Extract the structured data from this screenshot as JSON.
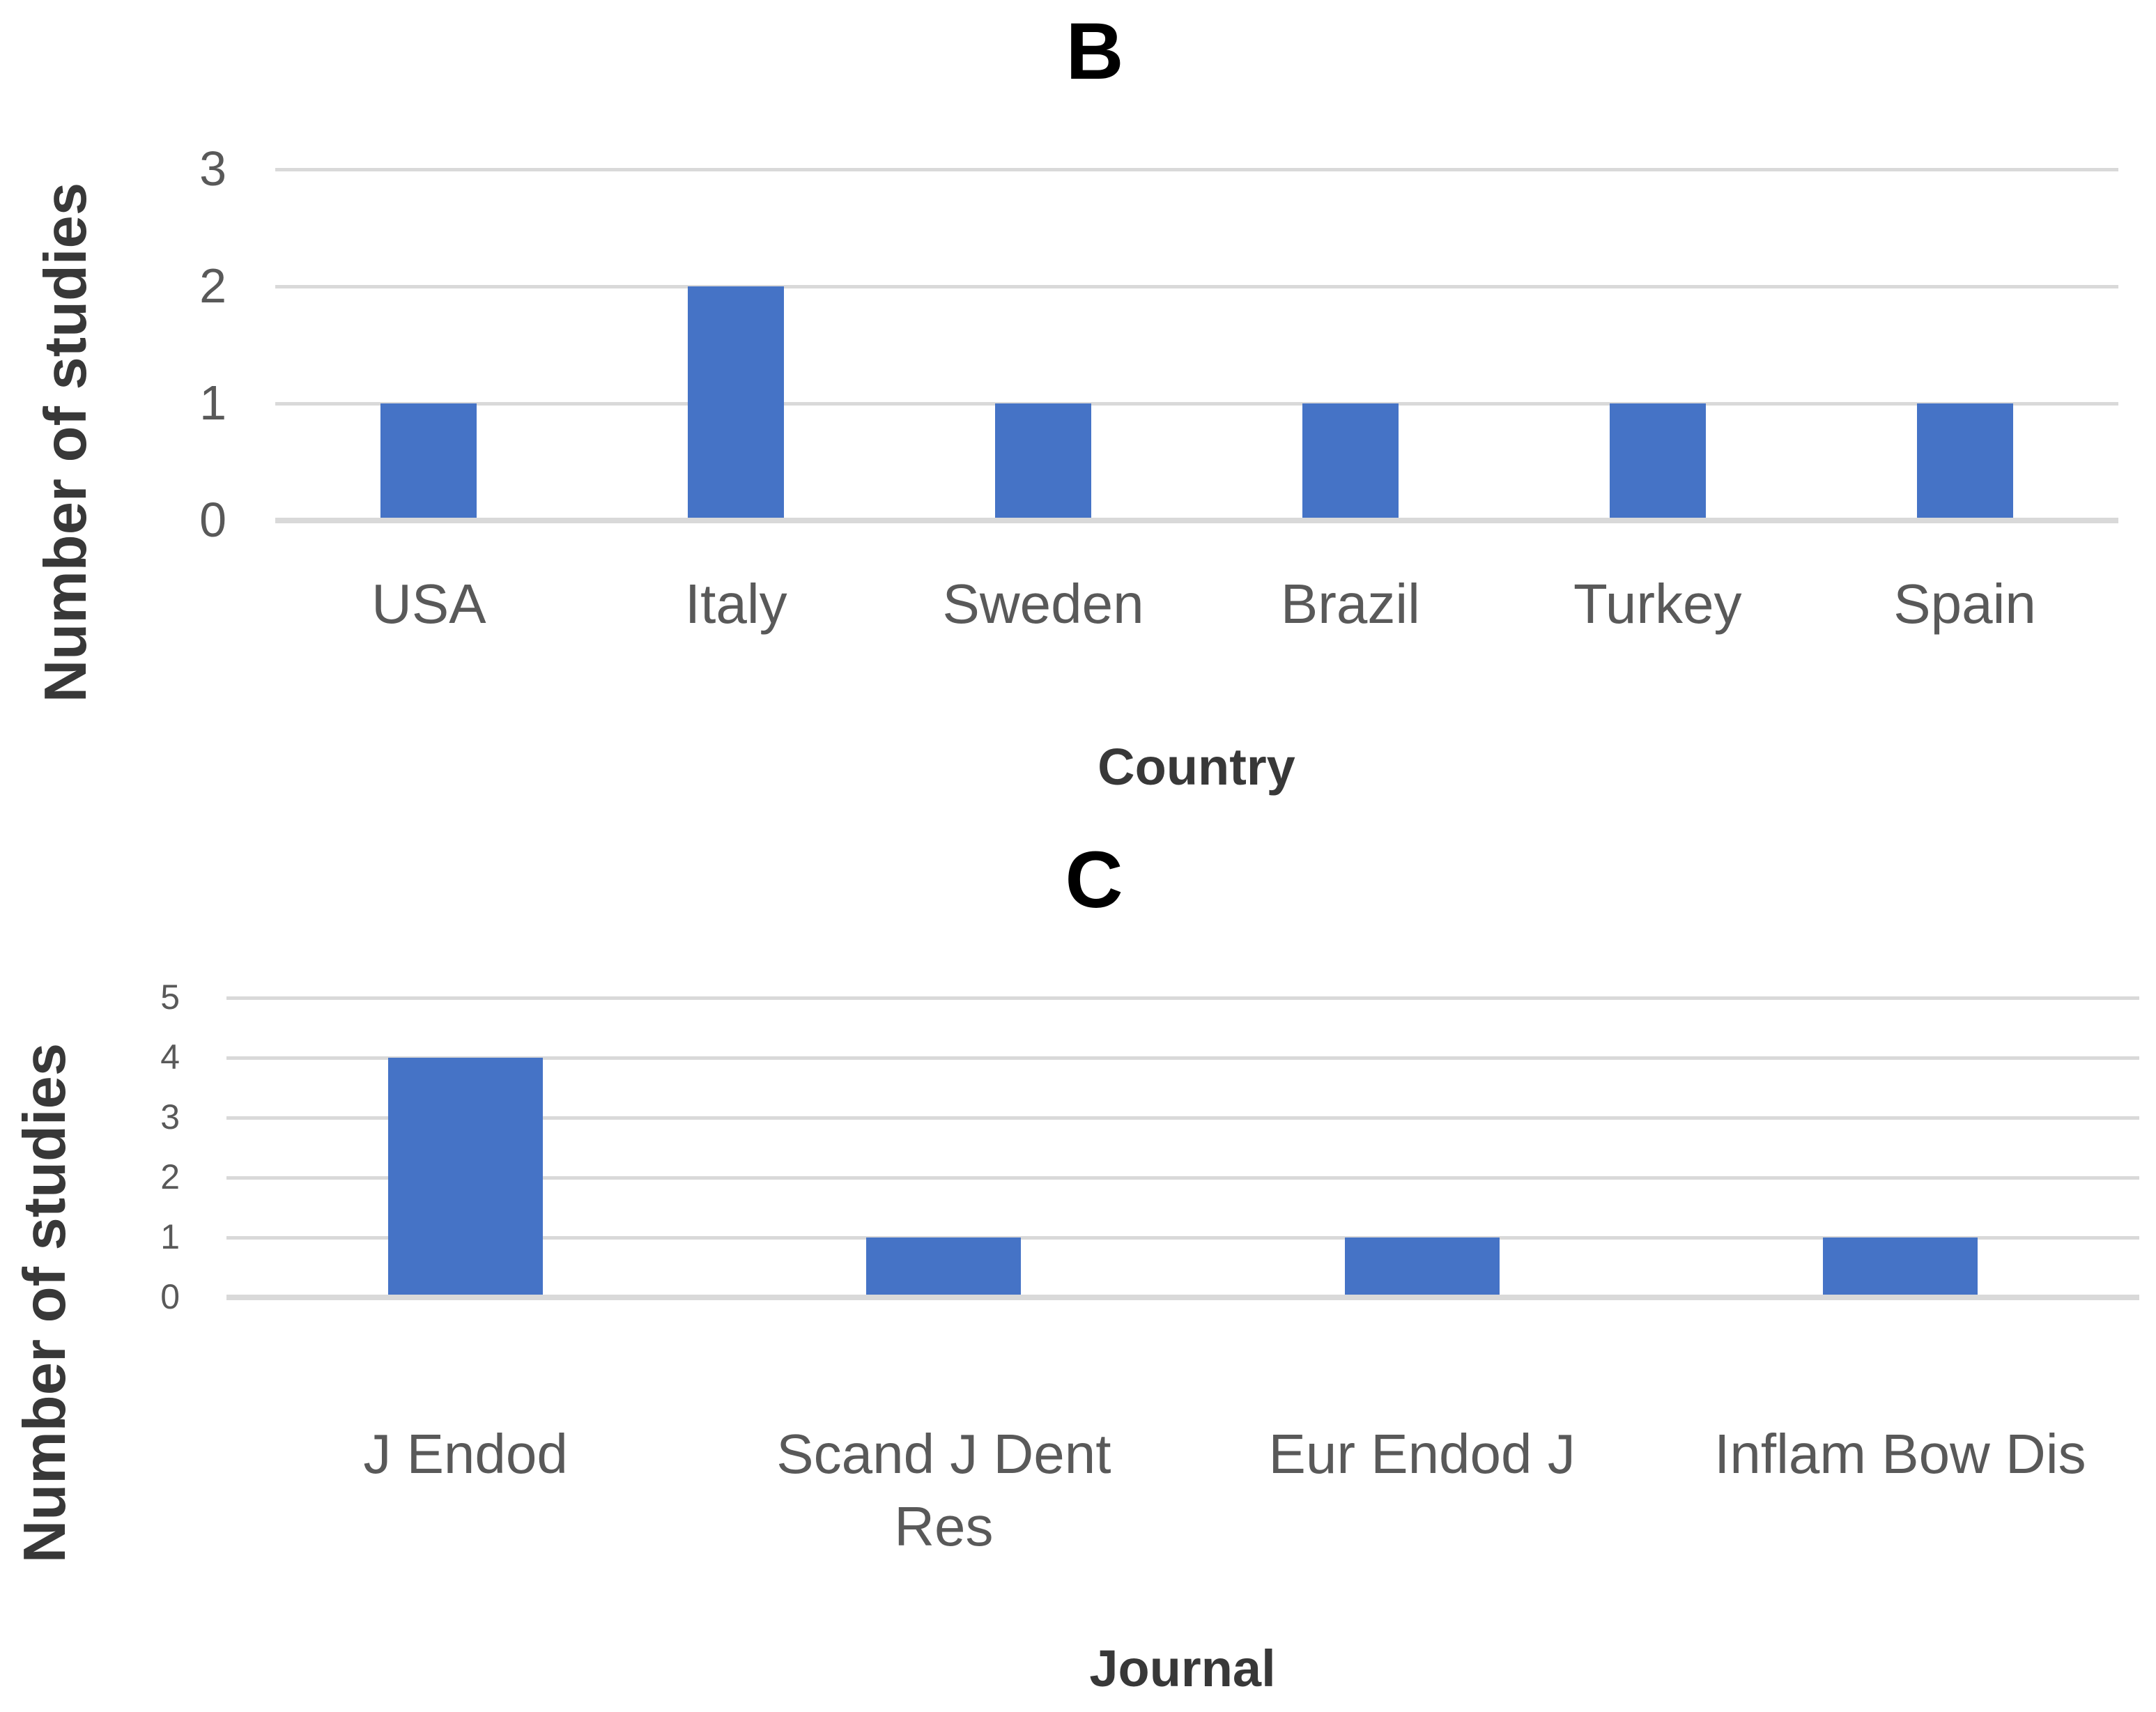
{
  "figure": {
    "panels": [
      "B",
      "C"
    ]
  },
  "colors": {
    "bar": "#4573C6",
    "gridline": "#D9D9D9",
    "tick_label": "#595959",
    "category_label": "#595959",
    "axis_title": "#383838",
    "panel_title": "#000000"
  },
  "chart_data": [
    {
      "type": "bar",
      "title": "B",
      "categories": [
        "USA",
        "Italy",
        "Sweden",
        "Brazil",
        "Turkey",
        "Spain"
      ],
      "values": [
        1,
        2,
        1,
        1,
        1,
        1
      ],
      "xlabel": "Country",
      "ylabel": "Number of studies",
      "ylim": [
        0,
        3
      ],
      "yticks": [
        0,
        1,
        2,
        3
      ],
      "grid": true,
      "legend": "none"
    },
    {
      "type": "bar",
      "title": "C",
      "categories": [
        "J Endod",
        "Scand J Dent Res",
        "Eur Endod J",
        "Inflam Bow Dis"
      ],
      "values": [
        4,
        1,
        1,
        1
      ],
      "xlabel": "Journal",
      "ylabel": "Number of studies",
      "ylim": [
        0,
        5
      ],
      "yticks": [
        0,
        1,
        2,
        3,
        4,
        5
      ],
      "grid": true,
      "legend": "none"
    }
  ]
}
